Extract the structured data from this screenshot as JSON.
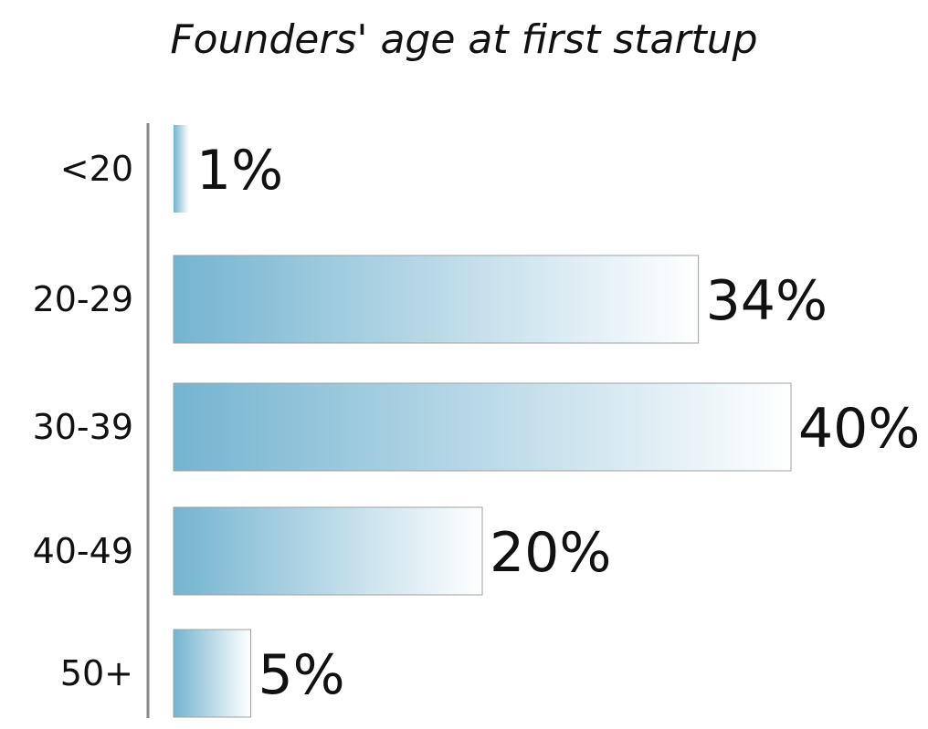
{
  "chart_data": {
    "type": "bar",
    "orientation": "horizontal",
    "title": "Founders' age at first startup",
    "categories": [
      "<20",
      "20-29",
      "30-39",
      "40-49",
      "50+"
    ],
    "values": [
      1,
      34,
      40,
      20,
      5
    ],
    "value_labels": [
      "1%",
      "34%",
      "40%",
      "20%",
      "5%"
    ],
    "unit": "%",
    "xlim": [
      0,
      40
    ],
    "grid": false,
    "legend": "none",
    "colors": {
      "bar_start": "#74b4d0",
      "bar_end": "#ffffff",
      "bar_border": "#a0a0a0",
      "axis": "#888888",
      "text": "#111111"
    }
  }
}
